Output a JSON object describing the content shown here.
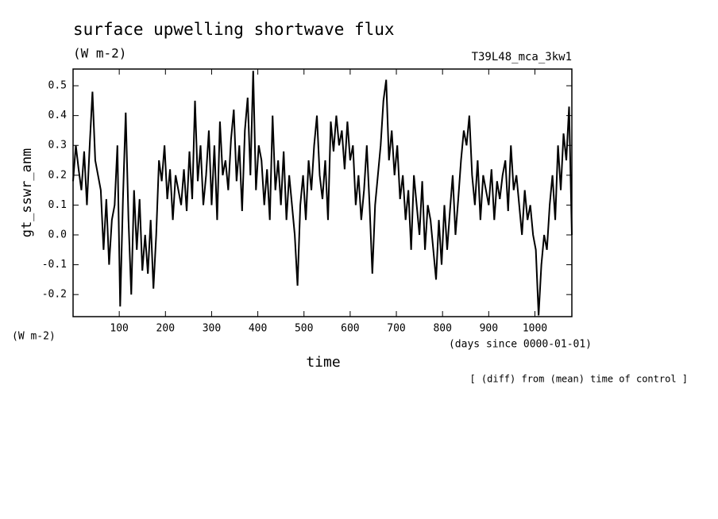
{
  "chart_data": {
    "type": "line",
    "title": "surface upwelling shortwave flux",
    "subtitle": "(W m-2)",
    "run_label": "T39L48_mca_3kw1",
    "y_label": "gt_sswr_anm",
    "y_unit": "(W m-2)",
    "x_label": "time",
    "x_unit": "(days since 0000-01-01)",
    "note": "[ (diff) from (mean) time of control ]",
    "color": "#000000",
    "xlim": [
      0,
      1080
    ],
    "ylim": [
      -0.274,
      0.556
    ],
    "xticks": [
      100,
      200,
      300,
      400,
      500,
      600,
      700,
      800,
      900,
      1000
    ],
    "yticks": [
      -0.2,
      -0.1,
      {
        "value": 0,
        "label": "0.0"
      },
      0.1,
      0.2,
      0.3,
      0.4,
      0.5
    ],
    "x": [
      0,
      6,
      12,
      18,
      24,
      30,
      36,
      42,
      48,
      54,
      60,
      66,
      72,
      78,
      84,
      90,
      96,
      102,
      108,
      114,
      120,
      126,
      132,
      138,
      144,
      150,
      156,
      162,
      168,
      174,
      180,
      186,
      192,
      198,
      204,
      210,
      216,
      222,
      228,
      234,
      240,
      246,
      252,
      258,
      264,
      270,
      276,
      282,
      288,
      294,
      300,
      306,
      312,
      318,
      324,
      330,
      336,
      342,
      348,
      354,
      360,
      366,
      372,
      378,
      384,
      390,
      396,
      402,
      408,
      414,
      420,
      426,
      432,
      438,
      444,
      450,
      456,
      462,
      468,
      474,
      480,
      486,
      492,
      498,
      504,
      510,
      516,
      522,
      528,
      534,
      540,
      546,
      552,
      558,
      564,
      570,
      576,
      582,
      588,
      594,
      600,
      606,
      612,
      618,
      624,
      630,
      636,
      642,
      648,
      654,
      660,
      666,
      672,
      678,
      684,
      690,
      696,
      702,
      708,
      714,
      720,
      726,
      732,
      738,
      744,
      750,
      756,
      762,
      768,
      774,
      780,
      786,
      792,
      798,
      804,
      810,
      816,
      822,
      828,
      834,
      840,
      846,
      852,
      858,
      864,
      870,
      876,
      882,
      888,
      894,
      900,
      906,
      912,
      918,
      924,
      930,
      936,
      942,
      948,
      954,
      960,
      966,
      972,
      978,
      984,
      990,
      996,
      1002,
      1008,
      1014,
      1020,
      1026,
      1032,
      1038,
      1044,
      1050,
      1056,
      1062,
      1068,
      1074,
      1080
    ],
    "values": [
      0.18,
      0.3,
      0.22,
      0.15,
      0.28,
      0.1,
      0.3,
      0.48,
      0.25,
      0.2,
      0.15,
      -0.05,
      0.12,
      -0.1,
      0.05,
      0.1,
      0.3,
      -0.24,
      0.12,
      0.41,
      0.05,
      -0.2,
      0.15,
      -0.05,
      0.12,
      -0.12,
      0.0,
      -0.13,
      0.05,
      -0.18,
      0.0,
      0.25,
      0.18,
      0.3,
      0.12,
      0.22,
      0.05,
      0.2,
      0.15,
      0.1,
      0.22,
      0.08,
      0.28,
      0.12,
      0.45,
      0.18,
      0.3,
      0.1,
      0.2,
      0.35,
      0.1,
      0.3,
      0.05,
      0.38,
      0.2,
      0.25,
      0.15,
      0.32,
      0.42,
      0.18,
      0.3,
      0.08,
      0.35,
      0.46,
      0.2,
      0.55,
      0.15,
      0.3,
      0.25,
      0.1,
      0.22,
      0.05,
      0.4,
      0.15,
      0.25,
      0.1,
      0.28,
      0.05,
      0.2,
      0.1,
      0.0,
      -0.17,
      0.1,
      0.2,
      0.05,
      0.25,
      0.15,
      0.3,
      0.4,
      0.2,
      0.12,
      0.25,
      0.05,
      0.38,
      0.28,
      0.4,
      0.3,
      0.35,
      0.22,
      0.38,
      0.25,
      0.3,
      0.1,
      0.2,
      0.05,
      0.15,
      0.3,
      0.1,
      -0.13,
      0.1,
      0.2,
      0.3,
      0.45,
      0.52,
      0.25,
      0.35,
      0.2,
      0.3,
      0.12,
      0.2,
      0.05,
      0.15,
      -0.05,
      0.2,
      0.1,
      0.0,
      0.18,
      -0.05,
      0.1,
      0.05,
      -0.05,
      -0.15,
      0.05,
      -0.1,
      0.1,
      -0.05,
      0.08,
      0.2,
      0.0,
      0.12,
      0.25,
      0.35,
      0.3,
      0.4,
      0.2,
      0.1,
      0.25,
      0.05,
      0.2,
      0.15,
      0.1,
      0.22,
      0.05,
      0.18,
      0.12,
      0.2,
      0.25,
      0.08,
      0.3,
      0.15,
      0.2,
      0.1,
      0.0,
      0.15,
      0.05,
      0.1,
      0.0,
      -0.05,
      -0.27,
      -0.1,
      0.0,
      -0.05,
      0.1,
      0.2,
      0.05,
      0.3,
      0.15,
      0.34,
      0.25,
      0.43,
      0.0
    ]
  }
}
